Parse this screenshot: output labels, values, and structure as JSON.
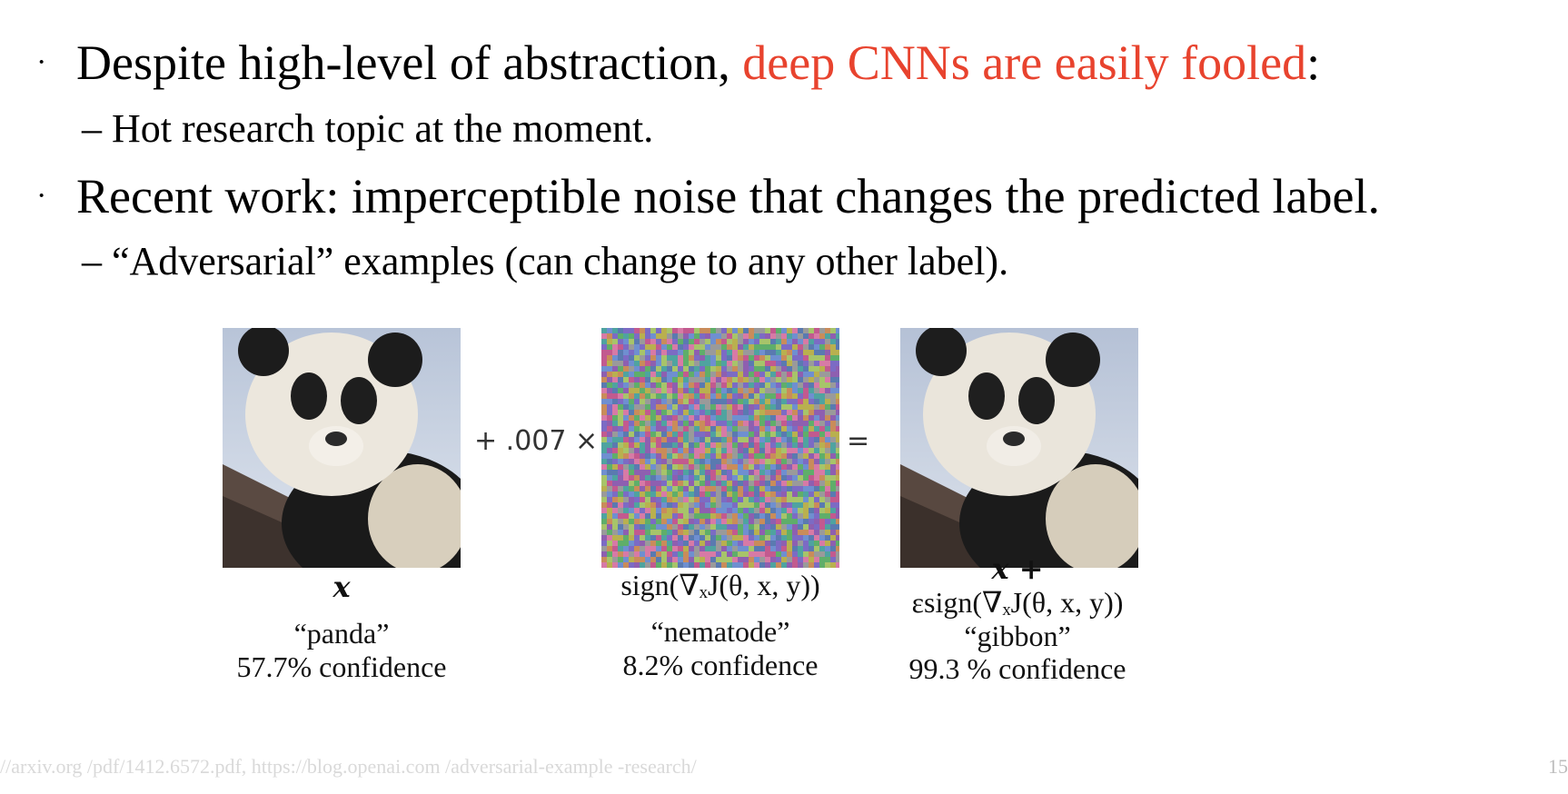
{
  "bullets": [
    {
      "marker": "·",
      "text_before": "Despite high-level of abstraction, ",
      "highlight": "deep CNNs are easily fooled",
      "text_after": ":",
      "sub": "– Hot research topic at the moment."
    },
    {
      "marker": "·",
      "text": "Recent work: imperceptible noise that changes the predicted label.",
      "sub": "– “Adversarial” examples (can change to any other label)."
    }
  ],
  "figure": {
    "multiplier": "+ .007 ×",
    "equals": "=",
    "panels": [
      {
        "image": "panda-photo",
        "math": "x",
        "label": "“panda”",
        "confidence": "57.7% confidence"
      },
      {
        "image": "noise-pattern",
        "math": "sign(∇ₓJ(θ, x, y))",
        "label": "“nematode”",
        "confidence": "8.2% confidence"
      },
      {
        "image": "panda-photo-perturbed",
        "math_line1": "x +",
        "math_line2": "εsign(∇ₓJ(θ, x, y))",
        "label": "“gibbon”",
        "confidence": "99.3 % confidence"
      }
    ]
  },
  "footer": {
    "source": "//arxiv.org /pdf/1412.6572.pdf, https://blog.openai.com /adversarial-example -research/",
    "page_number": "15"
  },
  "colors": {
    "highlight": "#e8432e"
  }
}
